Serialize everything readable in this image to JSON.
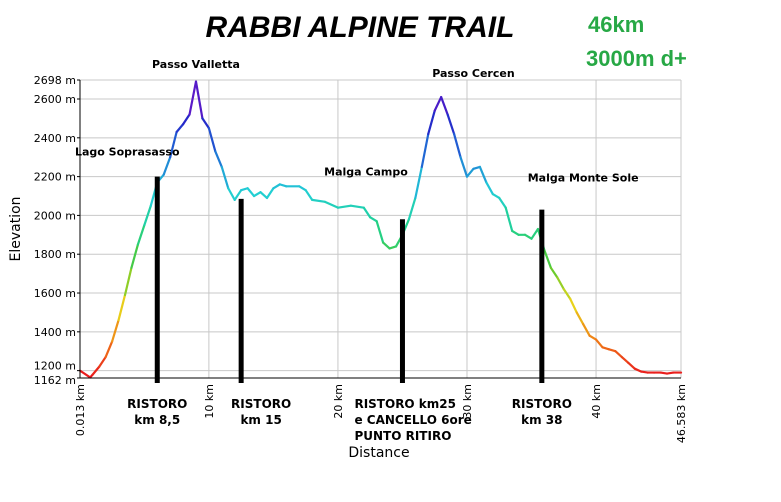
{
  "chart_data": {
    "type": "area",
    "title": "RABBI ALPINE TRAIL",
    "stats": [
      "46km",
      "3000m d+"
    ],
    "xlabel": "Distance",
    "ylabel": "Elevation",
    "xlim": [
      0.013,
      46.583
    ],
    "ylim": [
      1162,
      2698
    ],
    "x_ticks": [
      {
        "value": 0.013,
        "label": "0.013 km"
      },
      {
        "value": 10,
        "label": "10 km"
      },
      {
        "value": 20,
        "label": "20 km"
      },
      {
        "value": 30,
        "label": "30 km"
      },
      {
        "value": 40,
        "label": "40 km"
      },
      {
        "value": 46.583,
        "label": "46.583 km"
      }
    ],
    "y_ticks": [
      {
        "value": 1162,
        "label": "1162 m"
      },
      {
        "value": 1200,
        "label": "1200 m"
      },
      {
        "value": 1400,
        "label": "1400 m"
      },
      {
        "value": 1600,
        "label": "1600 m"
      },
      {
        "value": 1800,
        "label": "1800 m"
      },
      {
        "value": 2000,
        "label": "2000 m"
      },
      {
        "value": 2200,
        "label": "2200 m"
      },
      {
        "value": 2400,
        "label": "2400 m"
      },
      {
        "value": 2600,
        "label": "2600 m"
      },
      {
        "value": 2698,
        "label": "2698 m"
      }
    ],
    "gridlines": true,
    "profile": {
      "x": [
        0.013,
        0.8,
        1.0,
        1.5,
        2.0,
        2.5,
        3.0,
        3.5,
        4.0,
        4.5,
        5.0,
        5.5,
        6.0,
        6.5,
        7.0,
        7.5,
        8.0,
        8.5,
        9.0,
        9.5,
        10.0,
        10.5,
        11.0,
        11.5,
        12.0,
        12.5,
        13.0,
        13.5,
        14.0,
        14.5,
        15.0,
        15.5,
        16.0,
        17.0,
        17.5,
        18.0,
        19.0,
        20.0,
        21.0,
        22.0,
        22.5,
        23.0,
        23.5,
        24.0,
        24.5,
        25.0,
        25.5,
        26.0,
        26.5,
        27.0,
        27.5,
        28.0,
        28.5,
        29.0,
        29.5,
        30.0,
        30.5,
        31.0,
        31.5,
        32.0,
        32.5,
        33.0,
        33.5,
        34.0,
        34.5,
        35.0,
        35.5,
        36.0,
        36.5,
        37.0,
        37.5,
        38.0,
        38.5,
        39.0,
        39.5,
        40.0,
        40.5,
        41.0,
        41.5,
        42.0,
        42.5,
        43.0,
        43.5,
        44.0,
        44.5,
        45.0,
        45.5,
        46.0,
        46.583
      ],
      "y": [
        1200,
        1165,
        1180,
        1220,
        1270,
        1350,
        1460,
        1590,
        1730,
        1850,
        1950,
        2050,
        2170,
        2210,
        2300,
        2430,
        2470,
        2520,
        2690,
        2500,
        2450,
        2330,
        2250,
        2140,
        2080,
        2130,
        2140,
        2100,
        2120,
        2090,
        2140,
        2160,
        2150,
        2150,
        2130,
        2080,
        2070,
        2040,
        2050,
        2040,
        1990,
        1970,
        1860,
        1830,
        1840,
        1900,
        1980,
        2090,
        2250,
        2420,
        2540,
        2610,
        2520,
        2420,
        2300,
        2200,
        2240,
        2250,
        2170,
        2110,
        2090,
        2040,
        1920,
        1900,
        1900,
        1880,
        1930,
        1820,
        1730,
        1680,
        1620,
        1570,
        1500,
        1440,
        1380,
        1360,
        1320,
        1310,
        1300,
        1270,
        1240,
        1210,
        1195,
        1190,
        1190,
        1190,
        1185,
        1190,
        1190
      ]
    },
    "annotations": [
      {
        "text": "Passo Valletta",
        "x": 9.0,
        "y": 2698
      },
      {
        "text": "Passo Cercen",
        "x": 30.5,
        "y": 2610
      },
      {
        "text": "Lago Soprasasso",
        "x": 6.0,
        "y": 2210
      },
      {
        "text": "Malga Campo",
        "x": 24.5,
        "y": 1990
      },
      {
        "text": "Malga Monte Sole",
        "x": 39.0,
        "y": 2030
      }
    ],
    "ristoro": [
      {
        "x": 6.0,
        "y": 2200,
        "lines": [
          "RISTORO",
          "km 8,5"
        ]
      },
      {
        "x": 12.5,
        "y": 2085,
        "lines": [
          "RISTORO",
          "km 15"
        ]
      },
      {
        "x": 25.0,
        "y": 1980,
        "lines": [
          "RISTORO km25",
          "e CANCELLO 6ore",
          "PUNTO RITIRO"
        ]
      },
      {
        "x": 35.8,
        "y": 2030,
        "lines": [
          "RISTORO",
          "km 38"
        ]
      }
    ],
    "colors": {
      "gradient": [
        "#e8101e",
        "#f07d16",
        "#e7d71a",
        "#52c830",
        "#21d18a",
        "#22cfd6",
        "#1f6fd6",
        "#2622c8",
        "#8a12c8"
      ],
      "grid": "#c8c8c8",
      "axis": "#000000",
      "ristoro_bar": "#000000",
      "stats_text": "#27a845"
    }
  }
}
